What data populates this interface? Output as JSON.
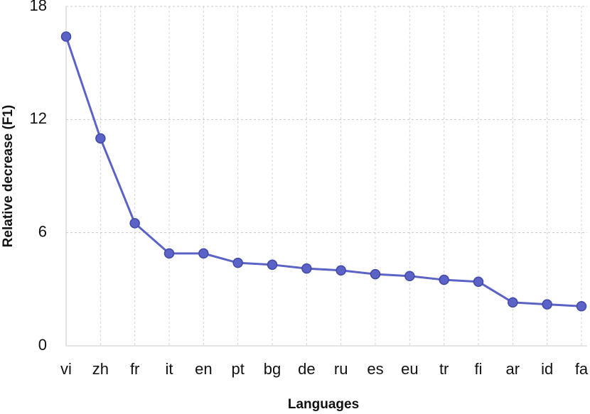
{
  "chart_data": {
    "type": "line",
    "x_label": "Languages",
    "y_label": "Relative decrease (F1)",
    "categories": [
      "vi",
      "zh",
      "fr",
      "it",
      "en",
      "pt",
      "bg",
      "de",
      "ru",
      "es",
      "eu",
      "tr",
      "fi",
      "ar",
      "id",
      "fa"
    ],
    "values": [
      16.4,
      11.0,
      6.5,
      4.9,
      4.9,
      4.4,
      4.3,
      4.1,
      4.0,
      3.8,
      3.7,
      3.5,
      3.4,
      2.3,
      2.2,
      2.1
    ],
    "color": "#5b63c6",
    "ylim": [
      0,
      18
    ],
    "yticks": [
      0,
      6,
      12,
      18
    ],
    "grid": true
  }
}
